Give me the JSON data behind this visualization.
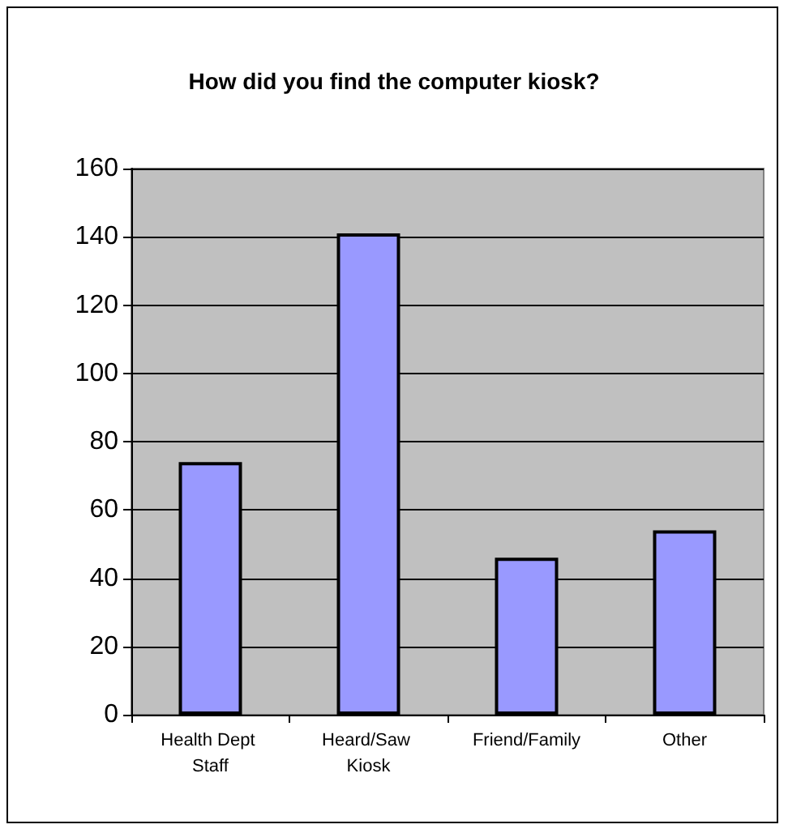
{
  "chart_data": {
    "type": "bar",
    "title": "How did you find the computer kiosk?",
    "categories": [
      "Health Dept Staff",
      "Heard/Saw Kiosk",
      "Friend/Family",
      "Other"
    ],
    "values": [
      74,
      141,
      46,
      54
    ],
    "color": "#9999ff",
    "ylim": [
      0,
      160
    ],
    "yticks": [
      0,
      20,
      40,
      60,
      80,
      100,
      120,
      140,
      160
    ],
    "grid": "y"
  }
}
